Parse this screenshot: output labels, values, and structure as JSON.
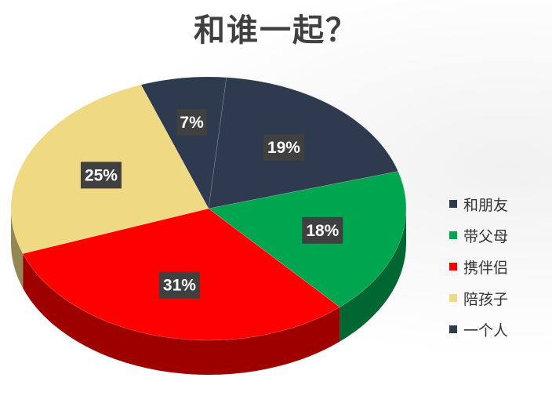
{
  "chart_data": {
    "type": "pie",
    "title": "和谁一起？",
    "slices": [
      {
        "name": "一个人",
        "value": 7,
        "label": "7%",
        "color": "#2e3a4e"
      },
      {
        "name": "和朋友",
        "value": 19,
        "label": "19%",
        "color": "#2e3a4e"
      },
      {
        "name": "带父母",
        "value": 18,
        "label": "18%",
        "color": "#00a550"
      },
      {
        "name": "携伴侣",
        "value": 31,
        "label": "31%",
        "color": "#ff0000"
      },
      {
        "name": "陪孩子",
        "value": 25,
        "label": "25%",
        "color": "#f0d983"
      }
    ],
    "legend": {
      "placement": "right",
      "entries": [
        "和朋友",
        "带父母",
        "携伴侣",
        "陪孩子",
        "一个人"
      ]
    }
  }
}
